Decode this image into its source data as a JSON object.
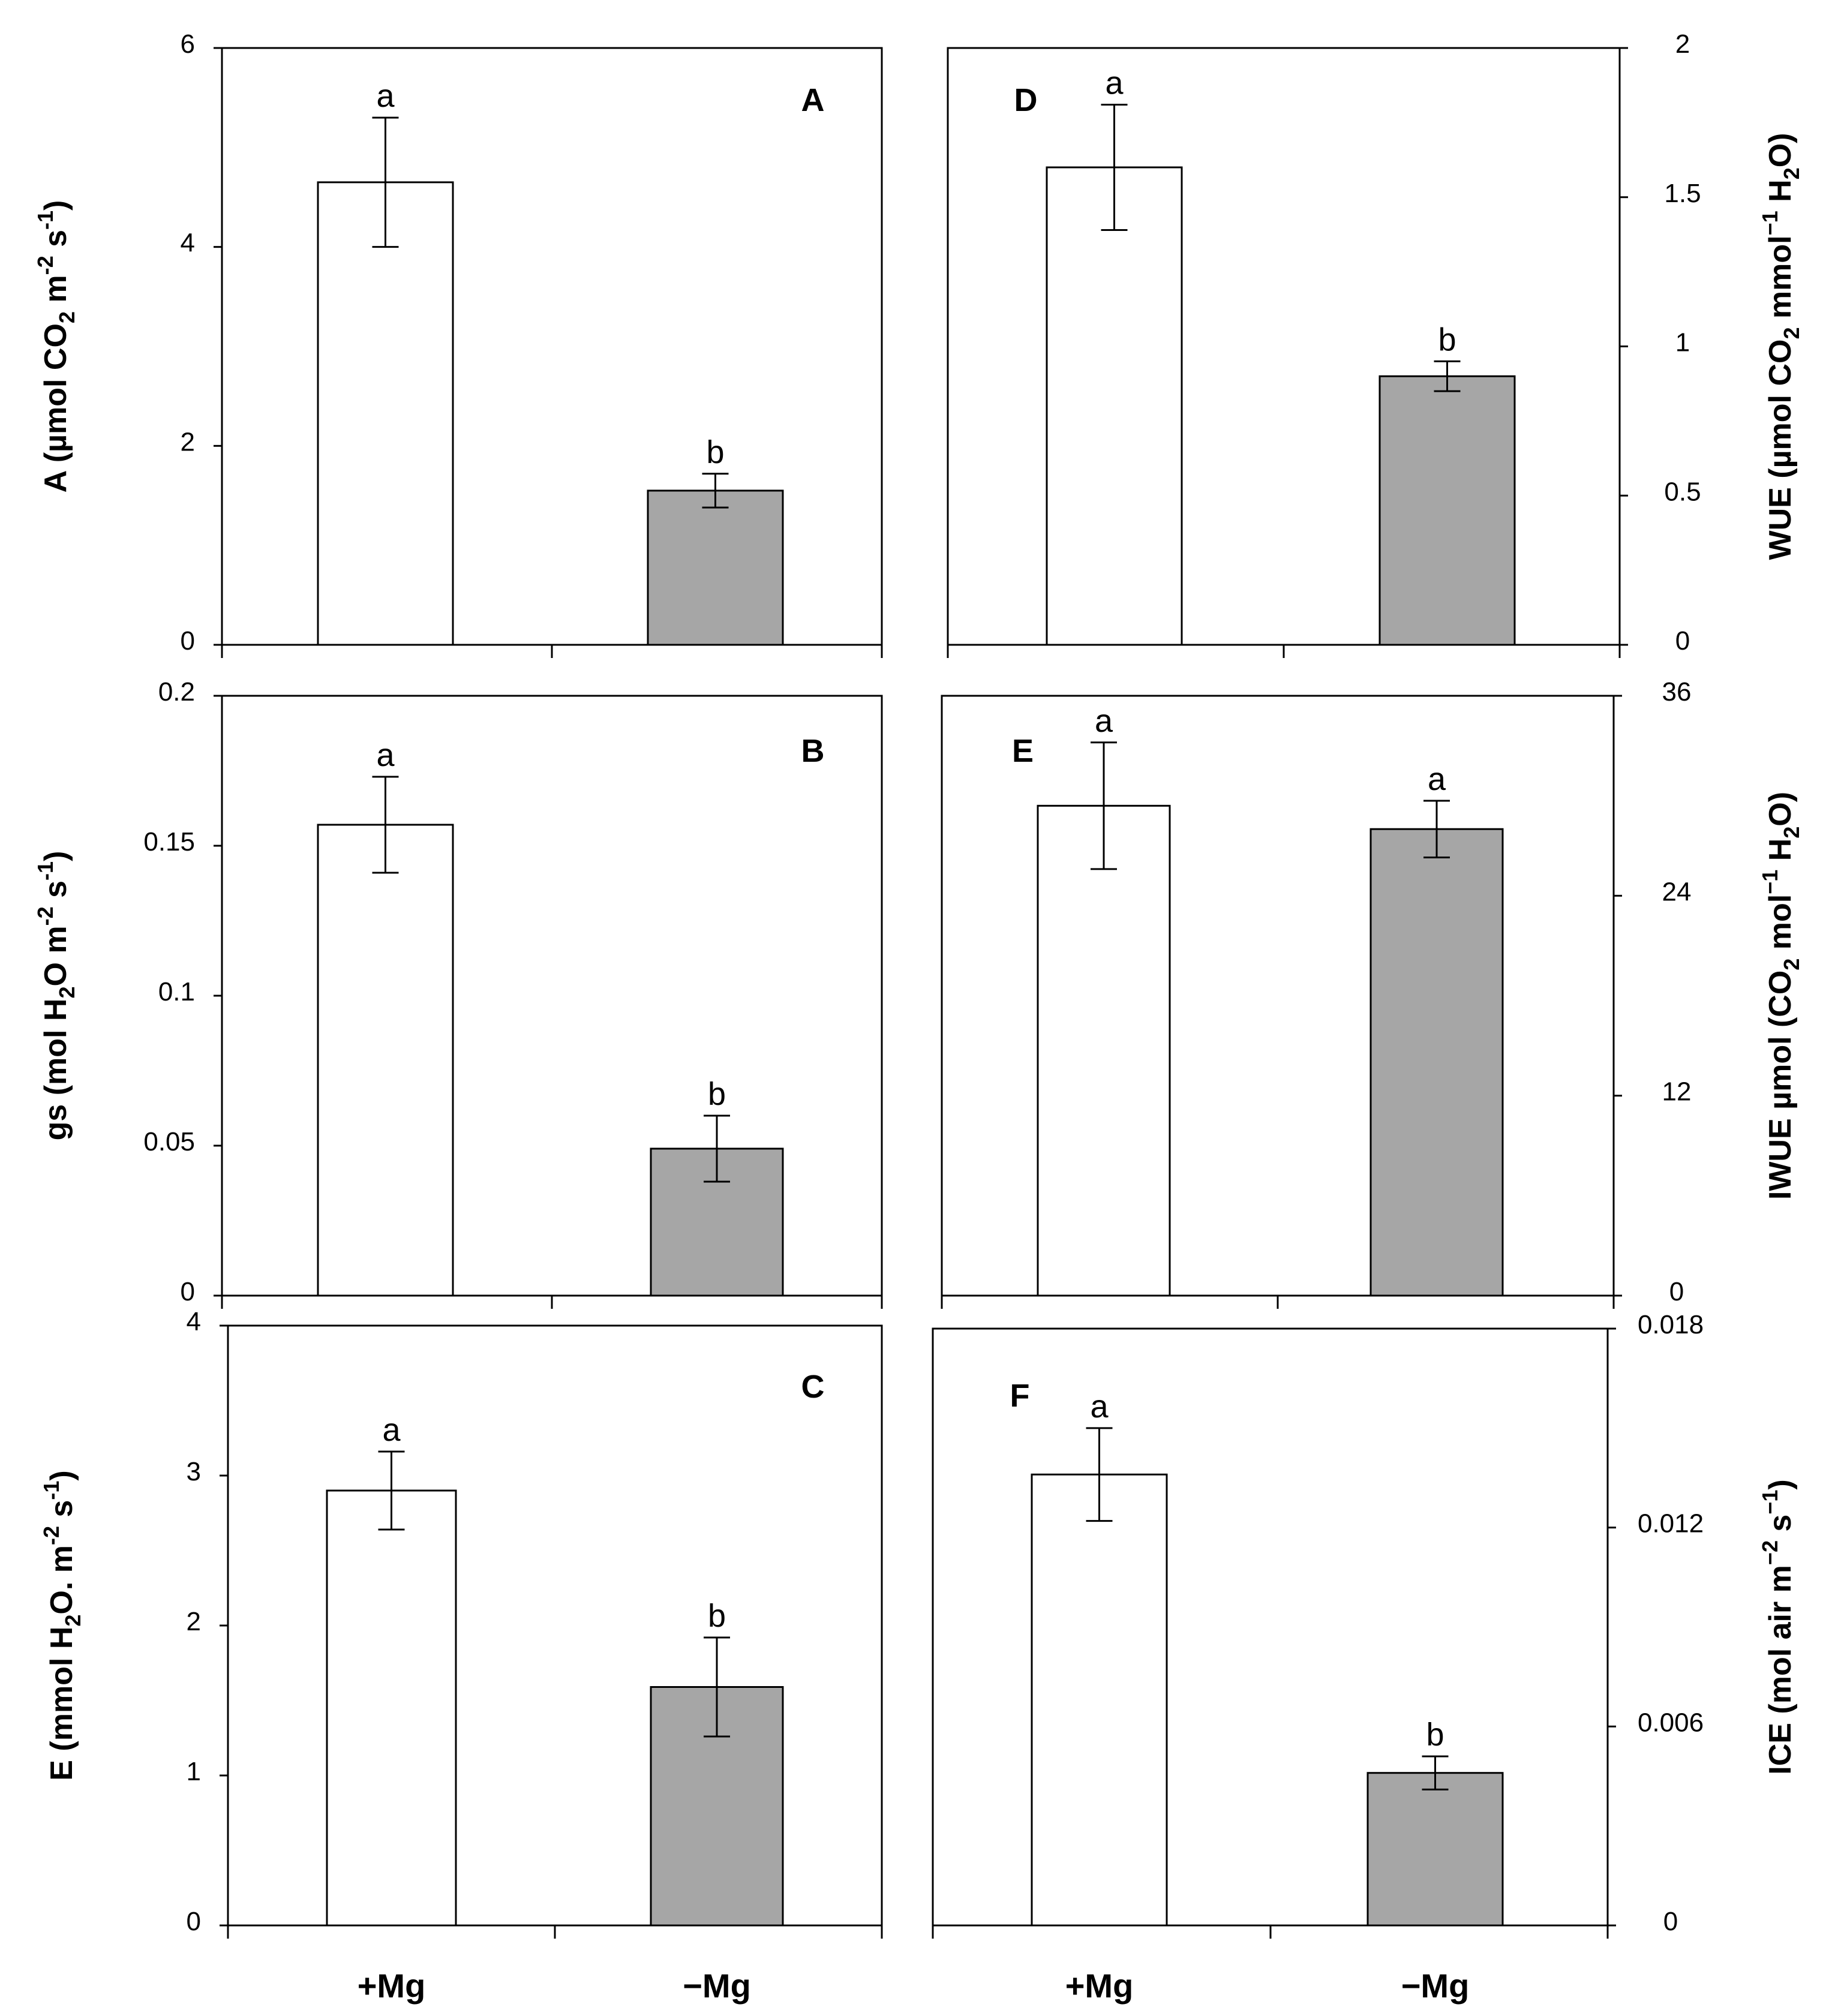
{
  "categories": [
    "+Mg",
    "−Mg"
  ],
  "colors": {
    "plus_mg_fill": "#ffffff",
    "minus_mg_fill": "#a6a6a6",
    "stroke": "#000000"
  },
  "chart_data": [
    {
      "type": "bar",
      "panel": "A",
      "ylabel": [
        "A (µmol CO",
        "2",
        " m",
        "-2",
        " s",
        "-1",
        ")"
      ],
      "ylim": [
        0,
        6
      ],
      "yticks": [
        0,
        2,
        4,
        6
      ],
      "tick_labels": [
        "0",
        "2",
        "4",
        "6"
      ],
      "values": [
        4.65,
        1.55
      ],
      "errors": [
        0.65,
        0.17
      ],
      "letters": [
        "a",
        "b"
      ]
    },
    {
      "type": "bar",
      "panel": "B",
      "ylabel": [
        "gs (mol H",
        "2",
        "O m",
        "-2",
        " s",
        "-1",
        ")"
      ],
      "ylim": [
        0,
        0.2
      ],
      "yticks": [
        0,
        0.05,
        0.1,
        0.15,
        0.2
      ],
      "tick_labels": [
        "0",
        "0.05",
        "0.1",
        "0.15",
        "0.2"
      ],
      "values": [
        0.157,
        0.049
      ],
      "errors": [
        0.016,
        0.011
      ],
      "letters": [
        "a",
        "b"
      ]
    },
    {
      "type": "bar",
      "panel": "C",
      "ylabel": [
        "E (mmol H",
        "2",
        "O. m",
        "-2",
        " s",
        "-1",
        ")"
      ],
      "ylim": [
        0,
        4
      ],
      "yticks": [
        0,
        1,
        2,
        3,
        4
      ],
      "tick_labels": [
        "0",
        "1",
        "2",
        "3",
        "4"
      ],
      "values": [
        2.9,
        1.59
      ],
      "errors": [
        0.26,
        0.33
      ],
      "letters": [
        "a",
        "b"
      ]
    },
    {
      "type": "bar",
      "panel": "D",
      "ylabel": [
        "WUE (µmol CO",
        "2",
        " mmol",
        "−1",
        " H",
        "2",
        "O)"
      ],
      "ylim": [
        0,
        2
      ],
      "yticks": [
        0,
        0.5,
        1,
        1.5,
        2
      ],
      "tick_labels": [
        "0",
        "0.5",
        "1",
        "1.5",
        "2"
      ],
      "values": [
        1.6,
        0.9
      ],
      "errors": [
        0.21,
        0.05
      ],
      "letters": [
        "a",
        "b"
      ]
    },
    {
      "type": "bar",
      "panel": "E",
      "ylabel": [
        "IWUE µmol (CO",
        "2",
        " mol",
        "−1",
        " H",
        "2",
        "O)"
      ],
      "ylim": [
        0,
        36
      ],
      "yticks": [
        0,
        12,
        24,
        36
      ],
      "tick_labels": [
        "0",
        "12",
        "24",
        "36"
      ],
      "values": [
        29.4,
        28.0
      ],
      "errors": [
        3.8,
        1.7
      ],
      "letters": [
        "a",
        "a"
      ]
    },
    {
      "type": "bar",
      "panel": "F",
      "ylabel": [
        "ICE (mol air m",
        "−2",
        " s",
        "−1",
        ")"
      ],
      "ylim": [
        0,
        0.018
      ],
      "yticks": [
        0,
        0.006,
        0.012,
        0.018
      ],
      "tick_labels": [
        "0",
        "0.006",
        "0.012",
        "0.018"
      ],
      "values": [
        0.0136,
        0.0046
      ],
      "errors": [
        0.0014,
        0.0005
      ],
      "letters": [
        "a",
        "b"
      ]
    }
  ]
}
